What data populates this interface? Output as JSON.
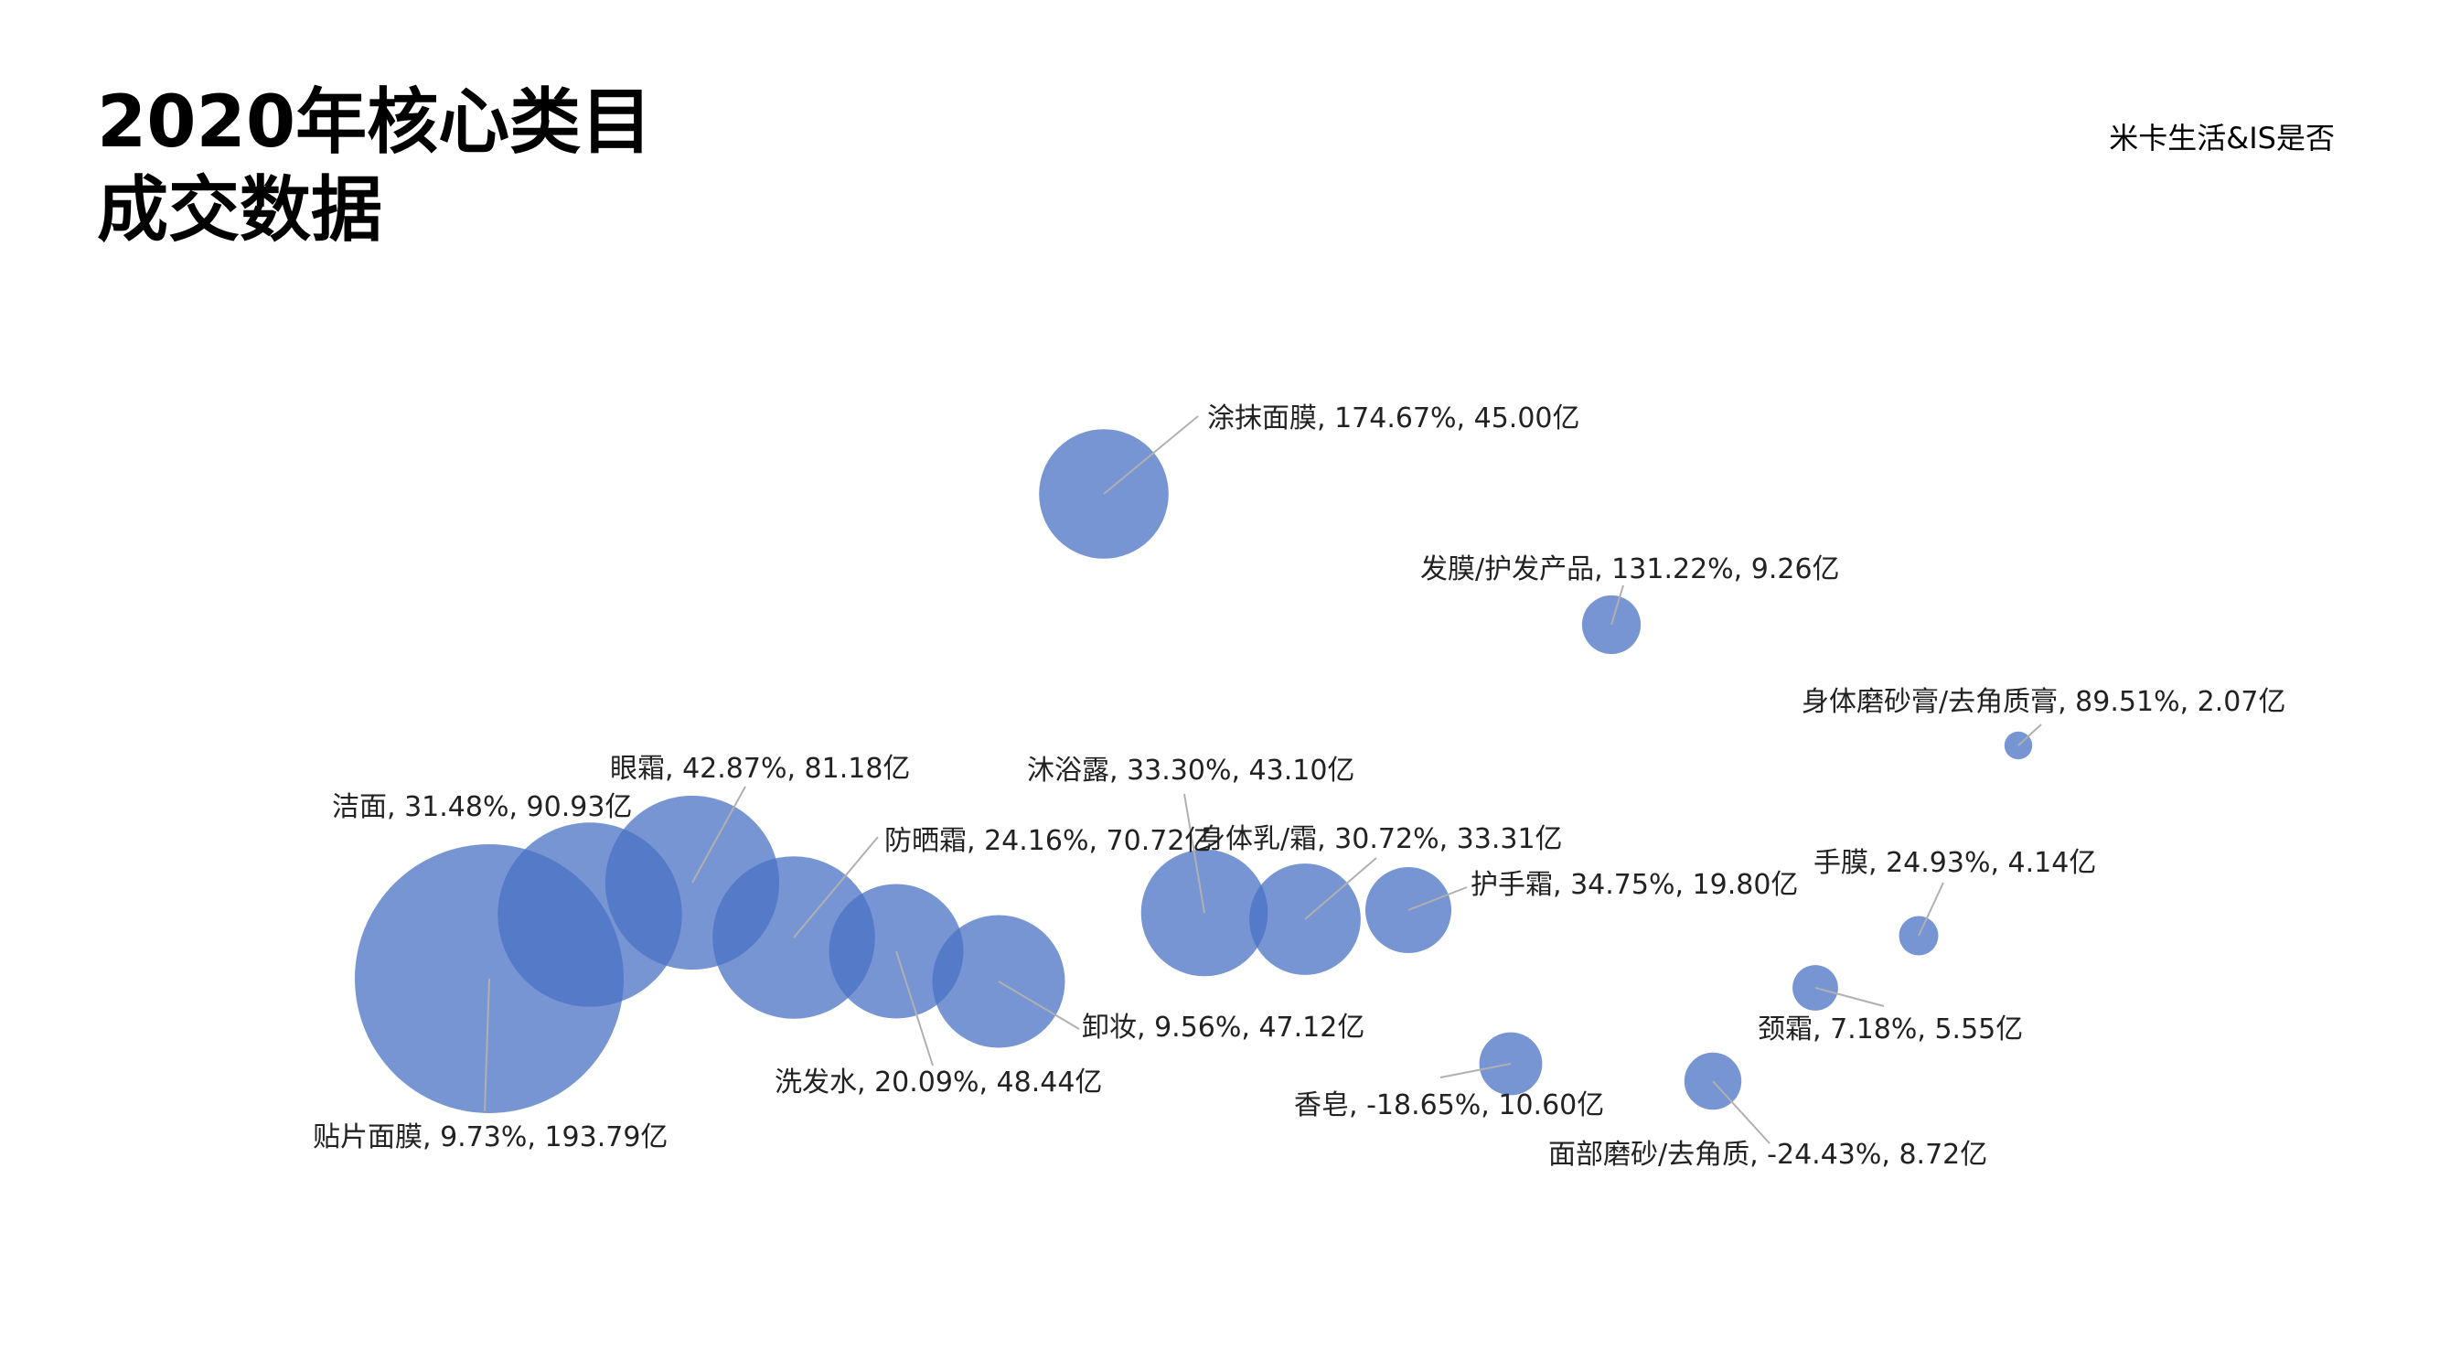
{
  "header": {
    "title_line1": "2020年核心类目",
    "title_line2": "成交数据",
    "source": "米卡生活&IS是否"
  },
  "chart_data": {
    "type": "bubble",
    "x_measure": "同比增长率 (%)",
    "size_measure": "成交额 (亿)",
    "points": [
      {
        "name": "贴片面膜",
        "growth": 9.73,
        "sales": 193.79,
        "label": "贴片面膜, 9.73%, 193.79亿"
      },
      {
        "name": "洁面",
        "growth": 31.48,
        "sales": 90.93,
        "label": "洁面, 31.48%, 90.93亿"
      },
      {
        "name": "眼霜",
        "growth": 42.87,
        "sales": 81.18,
        "label": "眼霜, 42.87%, 81.18亿"
      },
      {
        "name": "防晒霜",
        "growth": 24.16,
        "sales": 70.72,
        "label": "防晒霜, 24.16%, 70.72亿"
      },
      {
        "name": "洗发水",
        "growth": 20.09,
        "sales": 48.44,
        "label": "洗发水, 20.09%, 48.44亿"
      },
      {
        "name": "卸妆",
        "growth": 9.56,
        "sales": 47.12,
        "label": "卸妆, 9.56%, 47.12亿"
      },
      {
        "name": "沐浴露",
        "growth": 33.3,
        "sales": 43.1,
        "label": "沐浴露, 33.30%, 43.10亿"
      },
      {
        "name": "身体乳/霜",
        "growth": 30.72,
        "sales": 33.31,
        "label": "身体乳/霜, 30.72%, 33.31亿"
      },
      {
        "name": "护手霜",
        "growth": 34.75,
        "sales": 19.8,
        "label": "护手霜, 34.75%, 19.80亿"
      },
      {
        "name": "涂抹面膜",
        "growth": 174.67,
        "sales": 45.0,
        "label": "涂抹面膜, 174.67%, 45.00亿"
      },
      {
        "name": "发膜/护发产品",
        "growth": 131.22,
        "sales": 9.26,
        "label": "发膜/护发产品, 131.22%, 9.26亿"
      },
      {
        "name": "身体磨砂膏/去角质膏",
        "growth": 89.51,
        "sales": 2.07,
        "label": "身体磨砂膏/去角质膏, 89.51%, 2.07亿"
      },
      {
        "name": "手膜",
        "growth": 24.93,
        "sales": 4.14,
        "label": "手膜, 24.93%, 4.14亿"
      },
      {
        "name": "颈霜",
        "growth": 7.18,
        "sales": 5.55,
        "label": "颈霜, 7.18%, 5.55亿"
      },
      {
        "name": "香皂",
        "growth": -18.65,
        "sales": 10.6,
        "label": "香皂, -18.65%, 10.60亿"
      },
      {
        "name": "面部磨砂/去角质",
        "growth": -24.43,
        "sales": 8.72,
        "label": "面部磨砂/去角质, -24.43%, 8.72亿"
      }
    ],
    "bubble_color": "#4a72c4",
    "bubble_opacity": 0.75,
    "leader_line_color": "#b0b0b0",
    "grid": false,
    "axes_visible": false,
    "legend": "none"
  }
}
